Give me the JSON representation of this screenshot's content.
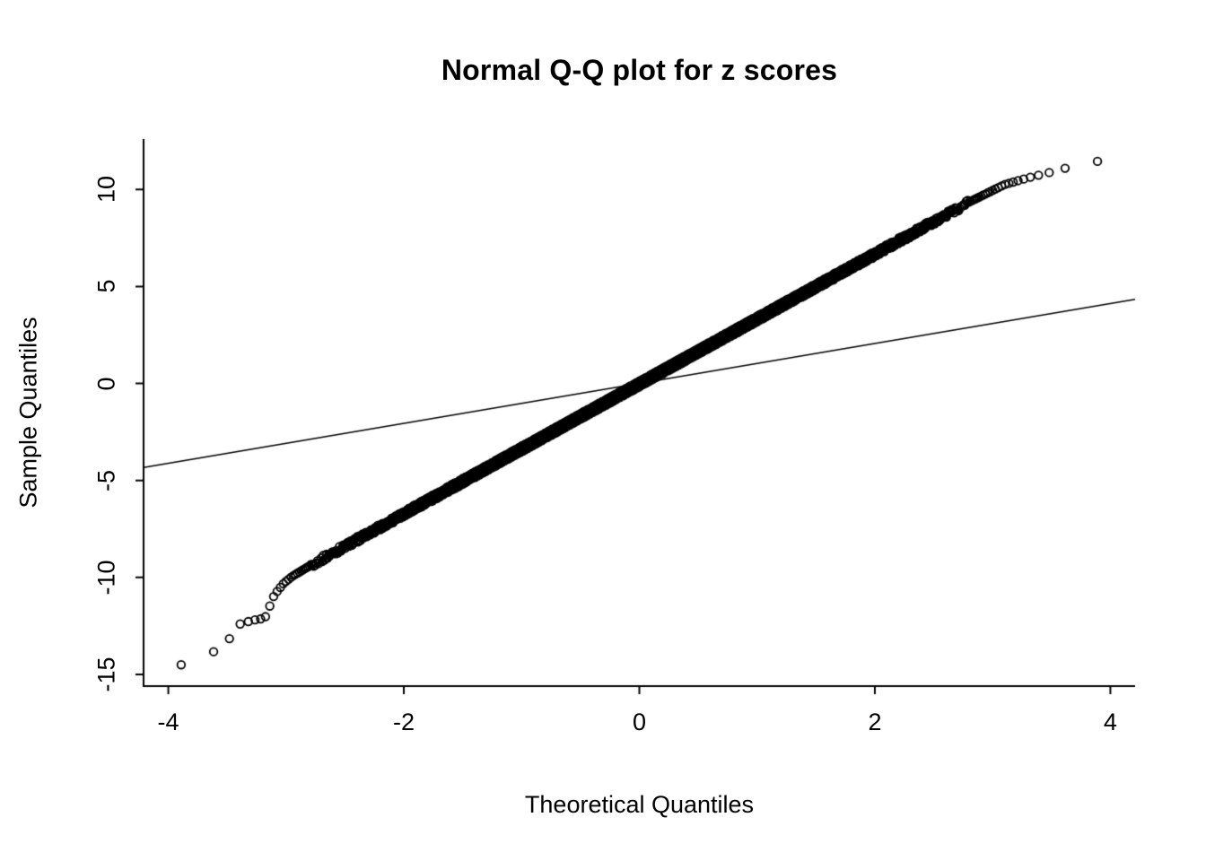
{
  "chart_data": {
    "type": "scatter",
    "subtype": "normal-qq-plot",
    "title": "Normal Q-Q plot for z scores",
    "xlabel": "Theoretical Quantiles",
    "ylabel": "Sample Quantiles",
    "x_ticks": [
      -4,
      -2,
      0,
      2,
      4
    ],
    "y_ticks": [
      -15,
      -10,
      -5,
      0,
      5,
      10
    ],
    "xlim": [
      -4.21,
      4.21
    ],
    "ylim": [
      -15.6,
      12.6
    ],
    "grid": false,
    "legend": null,
    "background_color": "#ffffff",
    "foreground_color": "#000000",
    "n_points": 10000,
    "marker": {
      "shape": "open-circle",
      "radius_px": 4.3,
      "color": "#000000"
    },
    "point_jitter": 0.15,
    "jitter_range": [
      -2.8,
      2.8
    ],
    "curve_breakpoints": [
      [
        -3.89,
        -14.5
      ],
      [
        -3.62,
        -13.85
      ],
      [
        -3.48,
        -13.15
      ],
      [
        -3.39,
        -12.4
      ],
      [
        -3.28,
        -12.2
      ],
      [
        -3.18,
        -12.1
      ],
      [
        -3.1,
        -10.9
      ],
      [
        -3.02,
        -10.3
      ],
      [
        -2.95,
        -9.95
      ],
      [
        -2.8,
        -9.4
      ],
      [
        2.8,
        9.35
      ],
      [
        2.95,
        9.8
      ],
      [
        3.1,
        10.25
      ],
      [
        3.3,
        10.6
      ],
      [
        3.5,
        10.9
      ],
      [
        3.62,
        11.1
      ],
      [
        3.89,
        11.45
      ]
    ],
    "reference_line": {
      "intercept": 0,
      "slope": 1.03,
      "color": "#000000"
    }
  }
}
